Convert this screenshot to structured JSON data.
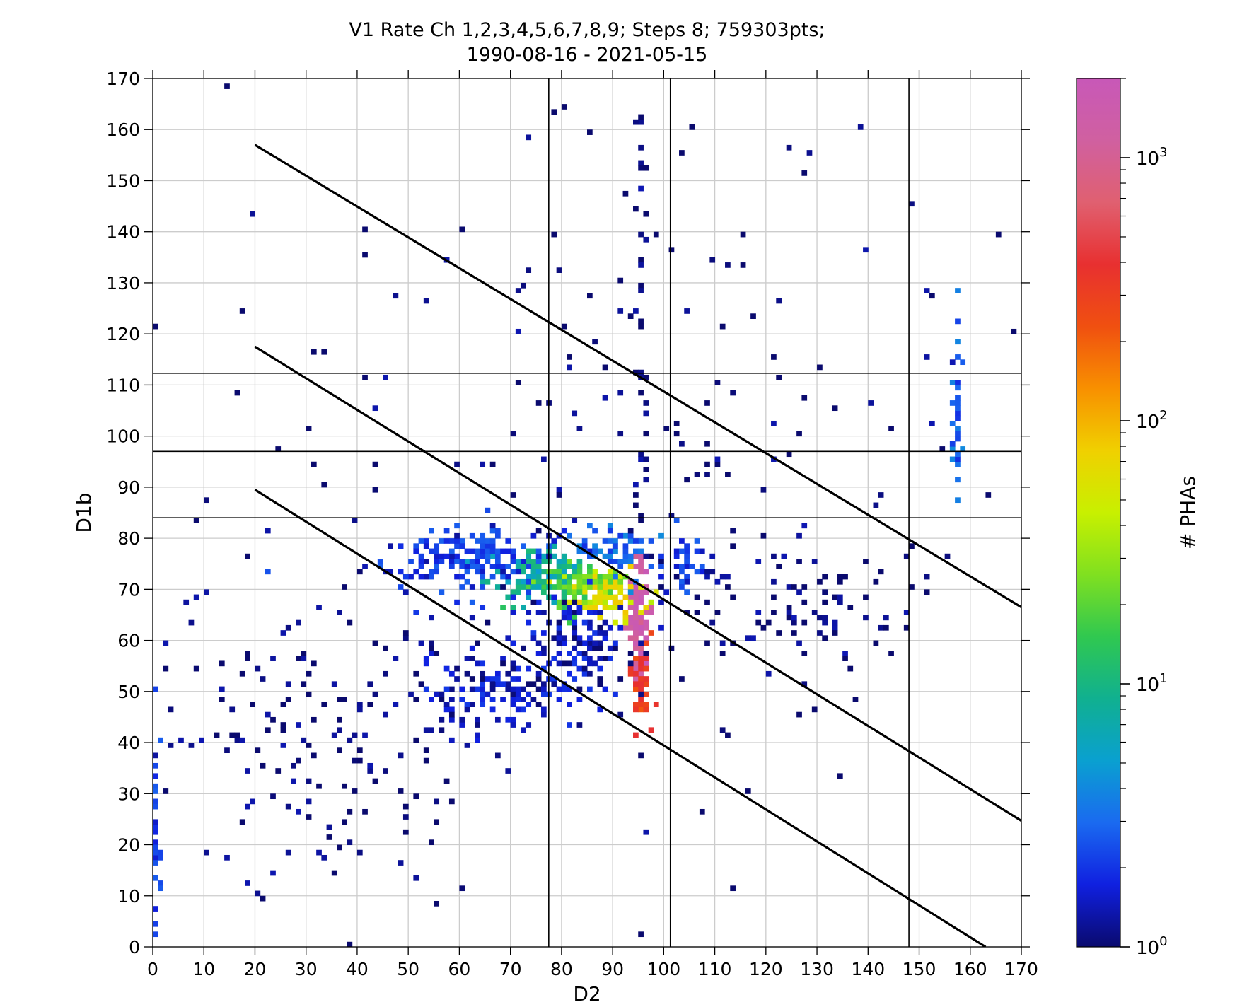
{
  "chart_data": {
    "type": "heatmap",
    "title_line1": "V1 Rate Ch 1,2,3,4,5,6,7,8,9; Steps 8; 759303pts;",
    "title_line2": "1990-08-16 - 2021-05-15",
    "xlabel": "D2",
    "ylabel": "D1b",
    "xlim": [
      0,
      170
    ],
    "ylim": [
      0,
      170
    ],
    "xticks": [
      0,
      10,
      20,
      30,
      40,
      50,
      60,
      70,
      80,
      90,
      100,
      110,
      120,
      130,
      140,
      150,
      160,
      170
    ],
    "yticks": [
      0,
      10,
      20,
      30,
      40,
      50,
      60,
      70,
      80,
      90,
      100,
      110,
      120,
      130,
      140,
      150,
      160,
      170
    ],
    "grid": true,
    "colorbar": {
      "label": "# PHAs",
      "scale": "log",
      "range": [
        1,
        2000
      ],
      "ticks": [
        {
          "value": 1,
          "base": "10",
          "exp": "0"
        },
        {
          "value": 10,
          "base": "10",
          "exp": "1"
        },
        {
          "value": 100,
          "base": "10",
          "exp": "2"
        },
        {
          "value": 1000,
          "base": "10",
          "exp": "3"
        }
      ],
      "colormap": [
        "#0a0a6e",
        "#1020e0",
        "#1a6af0",
        "#0aa0d0",
        "#10b090",
        "#30c850",
        "#80e020",
        "#c8f000",
        "#f0d000",
        "#f89000",
        "#f05010",
        "#e83030",
        "#e06070",
        "#d060a0",
        "#c858b8"
      ]
    },
    "reference_lines": {
      "vertical_x": [
        77.5,
        101.3,
        148
      ],
      "horizontal_y": [
        112.3,
        97,
        84
      ],
      "diagonal": [
        {
          "x1": 20,
          "y1": 157,
          "x2": 170,
          "y2": 66.5
        },
        {
          "x1": 20,
          "y1": 117.5,
          "x2": 170,
          "y2": 24.7
        },
        {
          "x1": 20,
          "y1": 89.5,
          "x2": 163,
          "y2": 0
        }
      ]
    },
    "heat_clusters": [
      {
        "name": "core",
        "x": 94.5,
        "y": 65,
        "sx": 1.0,
        "sy": 5.5,
        "count": 70,
        "value": 1500
      },
      {
        "name": "core-tail",
        "x": 95,
        "y": 52,
        "sx": 0.9,
        "sy": 4.5,
        "count": 60,
        "value": 300
      },
      {
        "name": "band-yellow",
        "x": 89,
        "y": 68,
        "sx": 3.5,
        "sy": 2.2,
        "count": 80,
        "value": 60
      },
      {
        "name": "band-green",
        "x": 83,
        "y": 70,
        "sx": 4.5,
        "sy": 2.5,
        "count": 90,
        "value": 20
      },
      {
        "name": "band-cyan",
        "x": 75,
        "y": 72.5,
        "sx": 5,
        "sy": 2.3,
        "count": 100,
        "value": 8
      },
      {
        "name": "band-blue",
        "x": 62,
        "y": 75.5,
        "sx": 10,
        "sy": 3,
        "count": 220,
        "value": 2
      },
      {
        "name": "upper-arm",
        "x": 90,
        "y": 76,
        "sx": 4,
        "sy": 3.5,
        "count": 70,
        "value": 3
      },
      {
        "name": "lower-arm",
        "x": 68,
        "y": 50,
        "sx": 9,
        "sy": 4,
        "count": 160,
        "value": 1.5
      },
      {
        "name": "mid-scatter",
        "x": 84,
        "y": 61,
        "sx": 6,
        "sy": 5,
        "count": 140,
        "value": 1.5
      },
      {
        "name": "right-cluster",
        "x": 104,
        "y": 76,
        "sx": 2,
        "sy": 3,
        "count": 35,
        "value": 2
      },
      {
        "name": "right-scatter",
        "x": 125,
        "y": 66,
        "sx": 12,
        "sy": 6,
        "count": 90,
        "value": 1
      },
      {
        "name": "left-scatter",
        "x": 30,
        "y": 40,
        "sx": 15,
        "sy": 15,
        "count": 160,
        "value": 1
      },
      {
        "name": "column-95",
        "x": 95,
        "y": 110,
        "sx": 0.6,
        "sy": 45,
        "count": 60,
        "value": 1
      },
      {
        "name": "column-157",
        "x": 157,
        "y": 100,
        "sx": 0.4,
        "sy": 10,
        "count": 35,
        "value": 3
      },
      {
        "name": "edge-column-0",
        "x": 0.3,
        "y": 20,
        "sx": 0.3,
        "sy": 12,
        "count": 30,
        "value": 2
      },
      {
        "name": "sparse-field",
        "x": 100,
        "y": 100,
        "sx": 45,
        "sy": 35,
        "count": 200,
        "value": 1
      }
    ]
  }
}
